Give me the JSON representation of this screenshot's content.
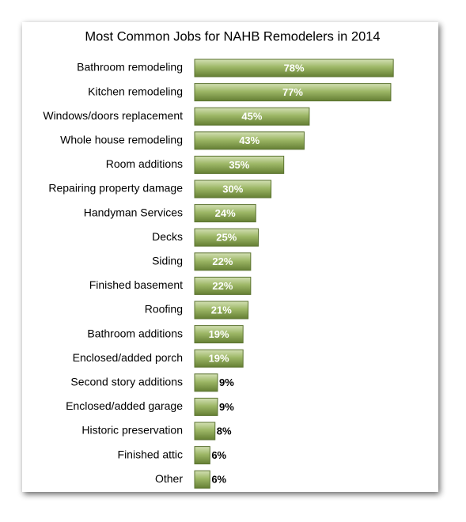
{
  "chart_data": {
    "type": "bar",
    "orientation": "horizontal",
    "title": "Most Common Jobs for NAHB Remodelers in 2014",
    "categories": [
      "Bathroom remodeling",
      "Kitchen remodeling",
      "Windows/doors replacement",
      "Whole house remodeling",
      "Room additions",
      "Repairing property damage",
      "Handyman Services",
      "Decks",
      "Siding",
      "Finished basement",
      "Roofing",
      "Bathroom additions",
      "Enclosed/added porch",
      "Second story additions",
      "Enclosed/added garage",
      "Historic preservation",
      "Finished attic",
      "Other"
    ],
    "values": [
      78,
      77,
      45,
      43,
      35,
      30,
      24,
      25,
      22,
      22,
      21,
      19,
      19,
      9,
      9,
      8,
      6,
      6
    ],
    "value_labels": [
      "78%",
      "77%",
      "45%",
      "43%",
      "35%",
      "30%",
      "24%",
      "25%",
      "22%",
      "22%",
      "21%",
      "19%",
      "19%",
      "9%",
      "9%",
      "8%",
      "6%",
      "6%"
    ],
    "color": "#8aa653"
  }
}
